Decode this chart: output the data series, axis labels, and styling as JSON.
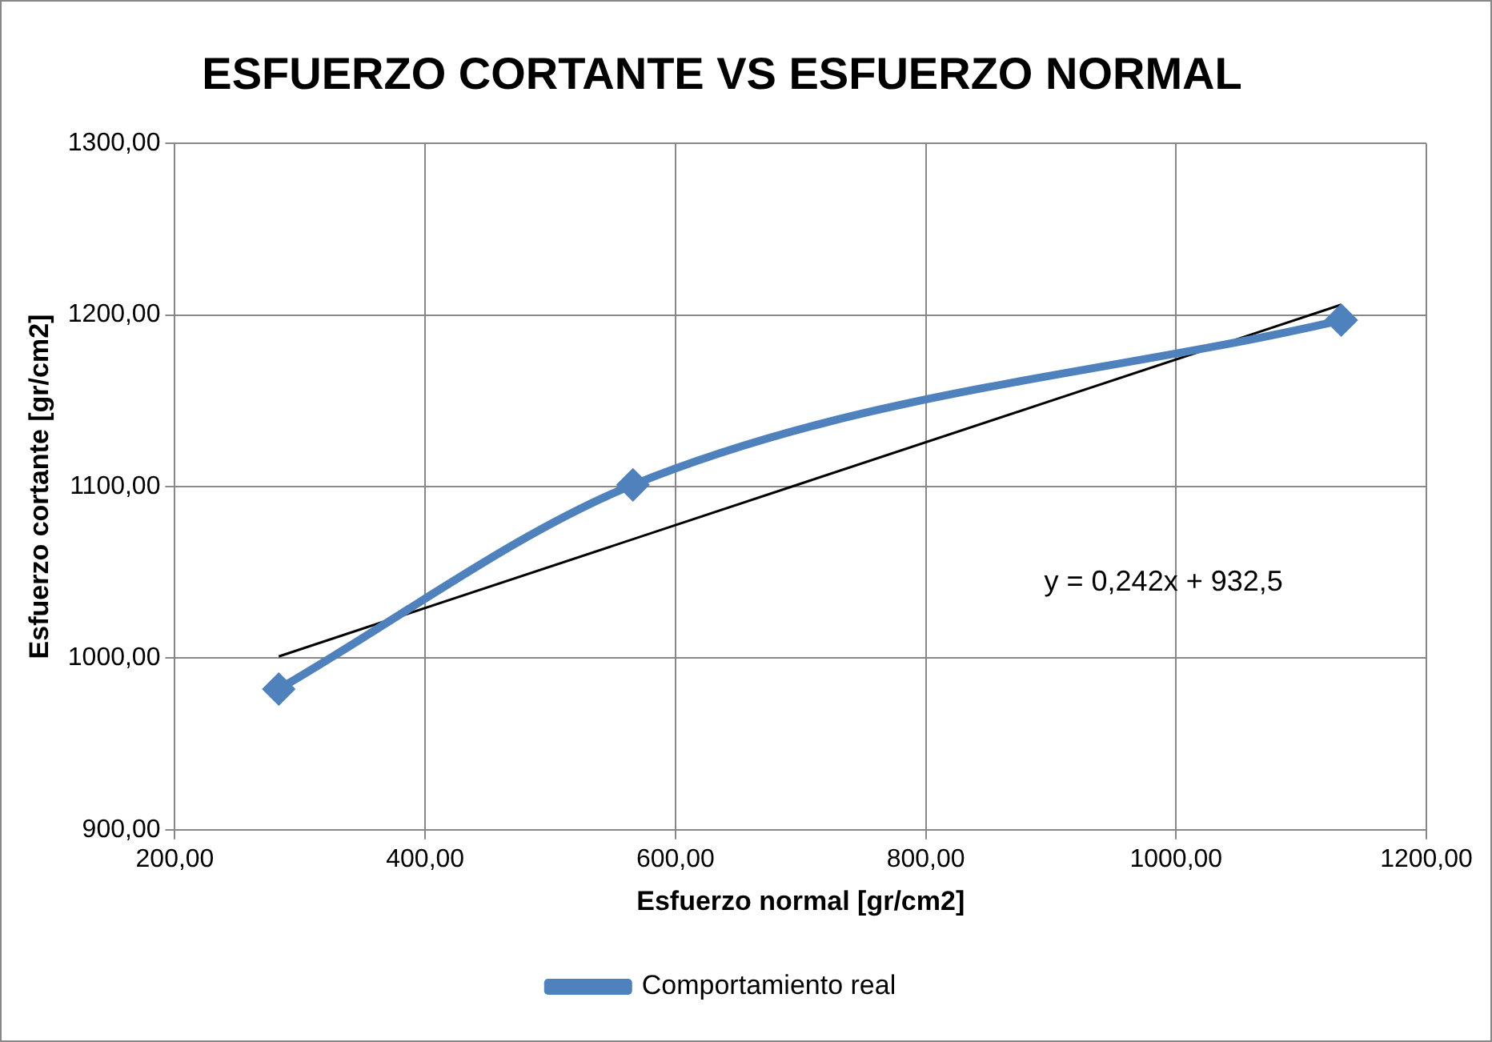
{
  "chart_data": {
    "type": "line",
    "title": "ESFUERZO CORTANTE VS ESFUERZO NORMAL",
    "xlabel": "Esfuerzo normal [gr/cm2]",
    "ylabel": "Esfuerzo cortante [gr/cm2]",
    "x": [
      283,
      566,
      1132
    ],
    "series": [
      {
        "name": "Comportamiento real",
        "color": "#4f81bd",
        "values": [
          982,
          1101,
          1197
        ],
        "marker": "diamond"
      },
      {
        "color": "#000000",
        "x": [
          283,
          1132
        ],
        "values": [
          1001,
          1206
        ],
        "marker": "none"
      }
    ],
    "xlim": [
      200,
      1200
    ],
    "xticks": [
      {
        "value": 200,
        "label": "200,00"
      },
      {
        "value": 400,
        "label": "400,00"
      },
      {
        "value": 600,
        "label": "600,00"
      },
      {
        "value": 800,
        "label": "800,00"
      },
      {
        "value": 1000,
        "label": "1000,00"
      },
      {
        "value": 1200,
        "label": "1200,00"
      }
    ],
    "ylim": [
      900,
      1300
    ],
    "yticks": [
      {
        "value": 900,
        "label": "900,00"
      },
      {
        "value": 1000,
        "label": "1000,00"
      },
      {
        "value": 1100,
        "label": "1100,00"
      },
      {
        "value": 1200,
        "label": "1200,00"
      },
      {
        "value": 1300,
        "label": "1300,00"
      }
    ],
    "grid": true,
    "legend": "bottom",
    "annotations": [
      "y = 0,242x + 932,5"
    ]
  }
}
